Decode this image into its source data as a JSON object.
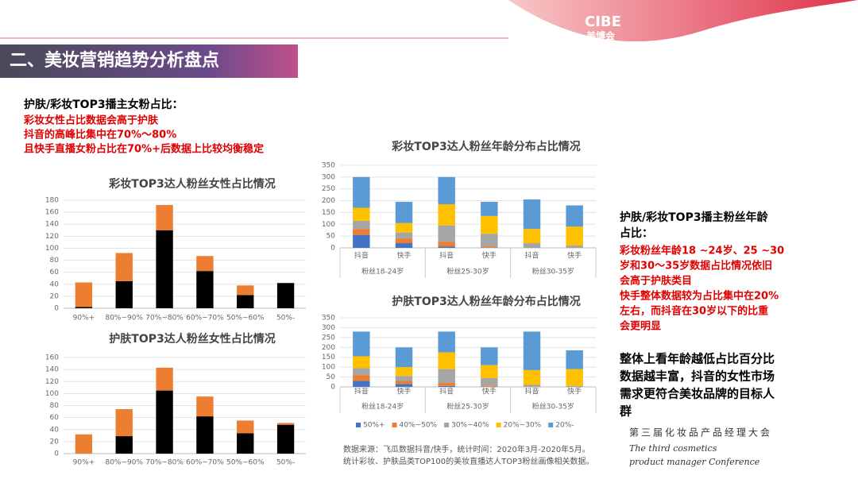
{
  "header": {
    "title": "二、美妆营销趋势分析盘点",
    "logo": "CIBE",
    "logo_sub": "美博会"
  },
  "left_text": {
    "heading": "护肤/彩妆TOP3播主女粉占比：",
    "lines": [
      "彩妆女性占比数据会高于护肤",
      "抖音的高峰比集中在70%～80%",
      "且快手直播女粉占比在70%+后数据上比较均衡稳定"
    ]
  },
  "right_text": {
    "heading": [
      "护肤/彩妆TOP3播主粉丝年龄",
      "占比："
    ],
    "red_lines": [
      "彩妆粉丝年龄18 ~24岁、25 ~30",
      "岁和30～35岁数据占比情况依旧",
      "会高于护肤类目",
      "快手整体数据较为占比集中在20%",
      "左右，而抖音在30岁以下的比重",
      "会更明显"
    ],
    "summary": [
      "整体上看年龄越低占比百分比",
      "数据越丰富，抖音的女性市场",
      "需求更符合美妆品牌的目标人",
      "群"
    ]
  },
  "source": [
    "数据来源：飞瓜数据抖音/快手，统计时间：2020年3月-2020年5月。",
    "统计彩妆、护肤品类TOP100的美妆直播达人TOP3粉丝画像相关数据。"
  ],
  "conference": {
    "cn": "第三届化妆品产品经理大会",
    "en": [
      "The third cosmetics",
      "product manager Conference"
    ]
  },
  "chart_data": [
    {
      "type": "stacked_bar",
      "title": "彩妆TOP3达人粉丝女性占比情况",
      "categories": [
        "90%+",
        "80%~90%",
        "70%~80%",
        "60%~70%",
        "50%~60%",
        "50%-"
      ],
      "series": [
        {
          "color": "#000000",
          "values": [
            2,
            45,
            130,
            62,
            22,
            42
          ]
        },
        {
          "color": "#ed7d31",
          "values": [
            41,
            47,
            42,
            25,
            16,
            0
          ]
        }
      ],
      "ylim": [
        0,
        180
      ],
      "yticks": [
        0,
        20,
        40,
        60,
        80,
        100,
        120,
        140,
        160,
        180
      ]
    },
    {
      "type": "stacked_bar",
      "title": "护肤TOP3达人粉丝女性占比情况",
      "categories": [
        "90%+",
        "80%~90%",
        "70%~80%",
        "60%~70%",
        "50%~60%",
        "50%-"
      ],
      "series": [
        {
          "color": "#000000",
          "values": [
            0,
            29,
            105,
            62,
            34,
            48
          ]
        },
        {
          "color": "#ed7d31",
          "values": [
            32,
            45,
            38,
            33,
            21,
            3
          ]
        }
      ],
      "ylim": [
        0,
        160
      ],
      "yticks": [
        0,
        20,
        40,
        60,
        80,
        100,
        120,
        140,
        160
      ]
    },
    {
      "type": "stacked_bar",
      "title": "彩妆TOP3达人粉丝年龄分布占比情况",
      "categories": [
        "抖音",
        "快手",
        "抖音",
        "快手",
        "抖音",
        "快手"
      ],
      "groups": [
        "粉丝18-24岁",
        "粉丝25-30岁",
        "粉丝30-35岁"
      ],
      "series": [
        {
          "color": "#4472c4",
          "values": [
            55,
            20,
            5,
            0,
            0,
            0
          ]
        },
        {
          "color": "#ed7d31",
          "values": [
            25,
            20,
            20,
            5,
            0,
            0
          ]
        },
        {
          "color": "#a5a5a5",
          "values": [
            35,
            25,
            70,
            55,
            20,
            10
          ]
        },
        {
          "color": "#ffc000",
          "values": [
            55,
            40,
            90,
            75,
            60,
            80
          ]
        },
        {
          "color": "#5b9bd5",
          "values": [
            130,
            90,
            115,
            60,
            125,
            90
          ]
        }
      ],
      "ylim": [
        0,
        350
      ],
      "yticks": [
        0,
        50,
        100,
        150,
        200,
        250,
        300,
        350
      ]
    },
    {
      "type": "stacked_bar",
      "title": "护肤TOP3达人粉丝年龄分布占比情况",
      "categories": [
        "抖音",
        "快手",
        "抖音",
        "快手",
        "抖音",
        "快手"
      ],
      "groups": [
        "粉丝18-24岁",
        "粉丝25-30岁",
        "粉丝30-35岁"
      ],
      "series": [
        {
          "name": "50%+",
          "color": "#4472c4",
          "values": [
            30,
            15,
            5,
            0,
            0,
            0
          ]
        },
        {
          "name": "40%~50%",
          "color": "#ed7d31",
          "values": [
            30,
            15,
            15,
            5,
            0,
            0
          ]
        },
        {
          "name": "30%~40%",
          "color": "#a5a5a5",
          "values": [
            35,
            25,
            70,
            40,
            10,
            5
          ]
        },
        {
          "name": "20%~30%",
          "color": "#ffc000",
          "values": [
            60,
            45,
            85,
            65,
            75,
            85
          ]
        },
        {
          "name": "20%-",
          "color": "#5b9bd5",
          "values": [
            125,
            100,
            105,
            90,
            195,
            95
          ]
        }
      ],
      "ylim": [
        0,
        350
      ],
      "yticks": [
        0,
        50,
        100,
        150,
        200,
        250,
        300,
        350
      ]
    }
  ]
}
